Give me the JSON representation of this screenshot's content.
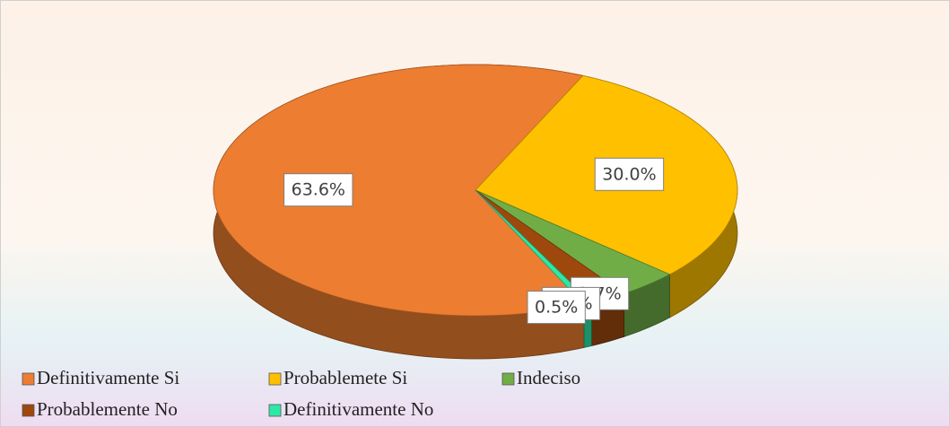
{
  "chart_data": {
    "type": "pie",
    "categories": [
      "Definitivamente Si",
      "Probablemete Si",
      "Indeciso",
      "Probablemente No",
      "Definitivamente No"
    ],
    "values": [
      63.6,
      30.0,
      3.7,
      2.3,
      0.5
    ],
    "value_labels": [
      "63.6%",
      "30.0%",
      "3.7%",
      "2.3%",
      "0.5%"
    ],
    "colors": [
      "#ed7d31",
      "#ffc000",
      "#70ad47",
      "#9e480e",
      "#2ee8a6"
    ],
    "legend": "bottom"
  }
}
